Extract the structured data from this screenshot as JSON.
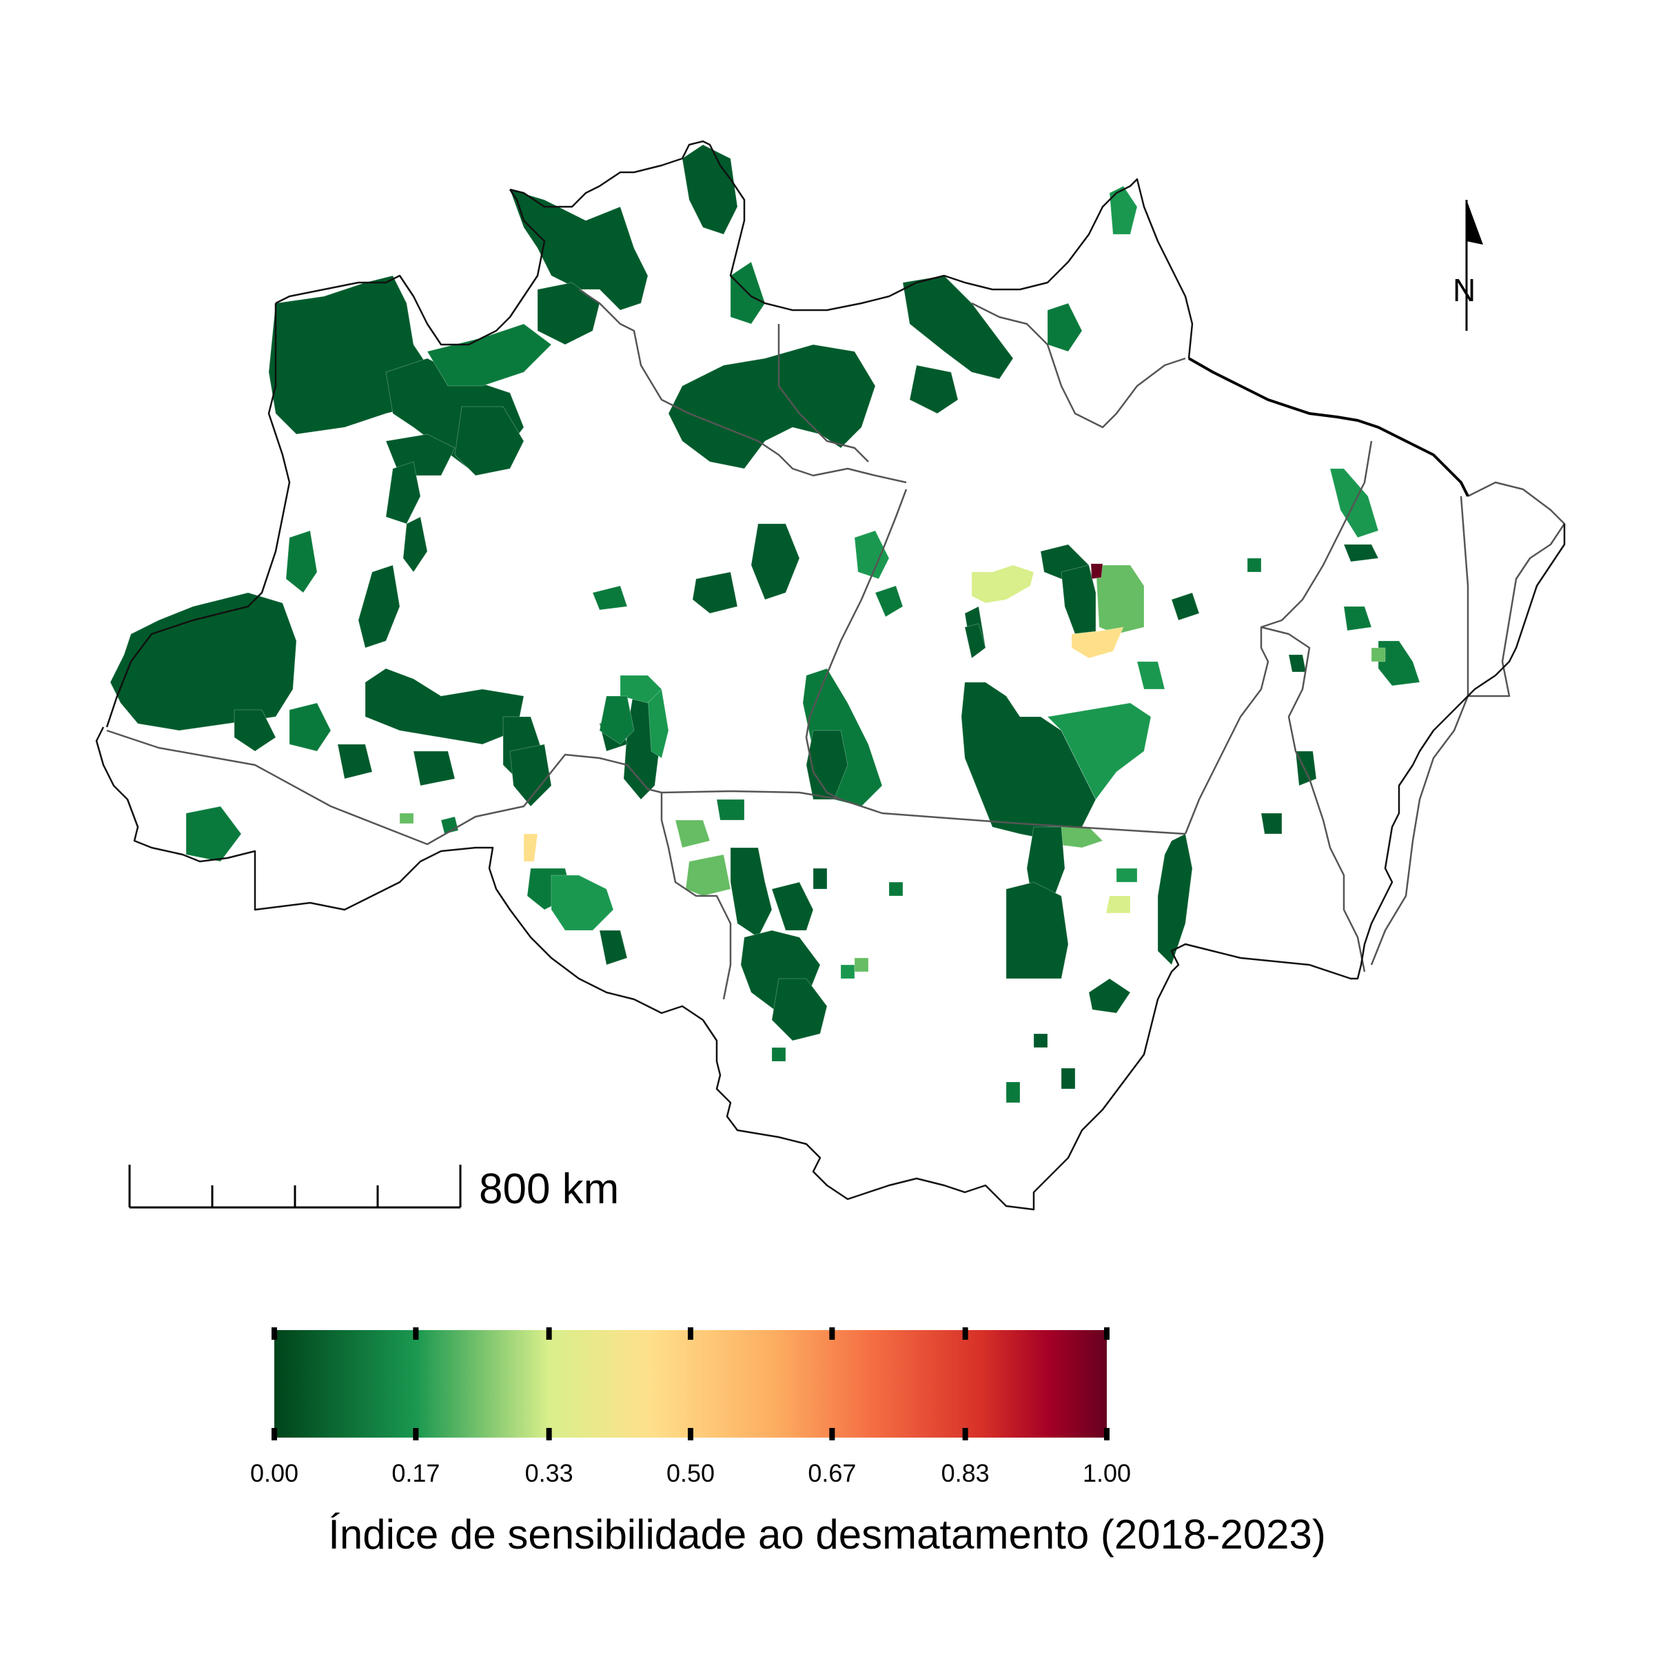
{
  "map": {
    "scale_bar_label": "800 km",
    "north_arrow_label": "N"
  },
  "legend": {
    "title": "Índice de sensibilidade ao desmatamento (2018-2023)",
    "min": 0,
    "max": 1,
    "ticks": [
      "0.00",
      "0.17",
      "0.33",
      "0.50",
      "0.67",
      "0.83",
      "1.00"
    ],
    "color_stops": [
      {
        "value": 0.0,
        "color": "#00441b"
      },
      {
        "value": 0.17,
        "color": "#1a9850"
      },
      {
        "value": 0.33,
        "color": "#d9ef8b"
      },
      {
        "value": 0.45,
        "color": "#fee08b"
      },
      {
        "value": 0.6,
        "color": "#fdae61"
      },
      {
        "value": 0.72,
        "color": "#f46d43"
      },
      {
        "value": 0.85,
        "color": "#d73027"
      },
      {
        "value": 0.93,
        "color": "#a50026"
      },
      {
        "value": 1.0,
        "color": "#67001f"
      }
    ]
  },
  "colors": {
    "very_low": "#00441b",
    "low": "#005a2b",
    "low_mid": "#0a7a3c",
    "mid_green": "#1a9850",
    "light_green": "#66bd63",
    "pale_green": "#a6d96a",
    "yellow_green": "#d9ef8b",
    "yellow": "#fee08b",
    "dark_red": "#67001f"
  }
}
